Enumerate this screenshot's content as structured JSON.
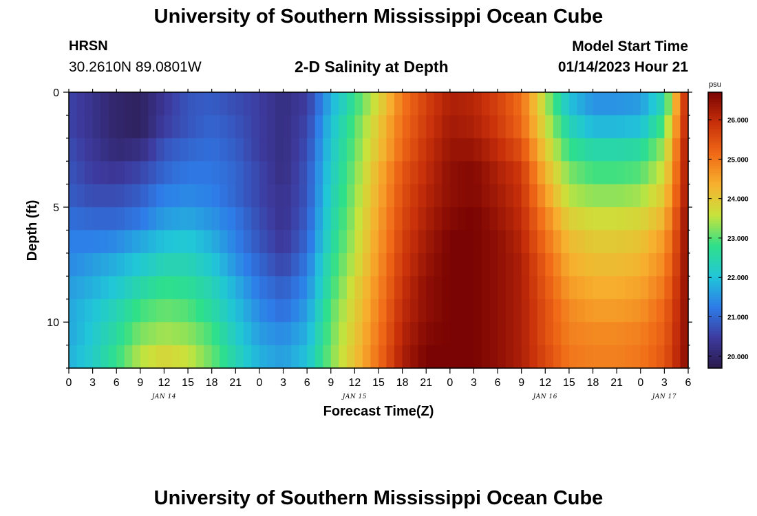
{
  "header": {
    "title": "University of Southern Mississippi Ocean Cube",
    "station": "HRSN",
    "coordinates": "30.2610N  89.0801W",
    "plot_title": "2-D Salinity at Depth",
    "model_start_label": "Model Start Time",
    "model_start_value": "01/14/2023 Hour 21"
  },
  "footer": {
    "title": "University of Southern Mississippi Ocean Cube"
  },
  "chart_data": {
    "type": "heatmap",
    "title": "2-D Salinity at Depth",
    "xlabel": "Forecast Time(Z)",
    "ylabel": "Depth (ft)",
    "x_tick_labels": [
      "0",
      "3",
      "6",
      "9",
      "12",
      "15",
      "18",
      "21",
      "0",
      "3",
      "6",
      "9",
      "12",
      "15",
      "18",
      "21",
      "0",
      "3",
      "6",
      "9",
      "12",
      "15",
      "18",
      "21",
      "0",
      "3",
      "6"
    ],
    "x_day_labels": [
      {
        "label": "JAN 14",
        "hour": 12
      },
      {
        "label": "JAN 15",
        "hour": 36
      },
      {
        "label": "JAN 16",
        "hour": 60
      },
      {
        "label": "JAN 17",
        "hour": 75
      }
    ],
    "xlim_hours": [
      0,
      78
    ],
    "y_tick_labels": [
      "0",
      "5",
      "10"
    ],
    "y_ticks": [
      0,
      5,
      10
    ],
    "ylim_ft": [
      0,
      12
    ],
    "y_reversed": true,
    "colorbar": {
      "unit": "psu",
      "range": [
        19.7,
        26.7
      ],
      "tick_labels": [
        "20.000",
        "21.000",
        "22.000",
        "23.000",
        "24.000",
        "25.000",
        "26.000"
      ],
      "tick_values": [
        20,
        21,
        22,
        23,
        24,
        25,
        26
      ],
      "colors": [
        "#2a1a4a",
        "#3d3a9e",
        "#2e7ce8",
        "#21c6d8",
        "#2fe08a",
        "#c8e33c",
        "#f7b02e",
        "#f06a17",
        "#c8300a",
        "#7a0403"
      ]
    },
    "depth_rows_ft": [
      0.5,
      1.5,
      2.5,
      3.5,
      4.5,
      5.5,
      6.5,
      7.5,
      8.5,
      9.5,
      10.5,
      11.5
    ],
    "time_knots_hours": [
      0,
      3,
      6,
      9,
      12,
      15,
      18,
      21,
      24,
      27,
      30,
      33,
      36,
      39,
      42,
      45,
      48,
      51,
      54,
      57,
      60,
      63,
      66,
      69,
      72,
      75,
      78
    ],
    "values_psu": [
      [
        20.6,
        20.3,
        20.0,
        19.9,
        20.4,
        20.8,
        20.9,
        20.7,
        20.5,
        20.2,
        20.5,
        21.8,
        22.8,
        23.8,
        25.0,
        25.7,
        26.2,
        26.1,
        25.7,
        25.1,
        23.5,
        22.0,
        21.5,
        21.5,
        21.6,
        22.5,
        26.4
      ],
      [
        20.6,
        20.3,
        20.0,
        19.9,
        20.5,
        20.8,
        21.0,
        20.8,
        20.5,
        20.2,
        20.6,
        22.0,
        23.0,
        24.0,
        25.1,
        25.8,
        26.3,
        26.2,
        25.8,
        25.2,
        23.7,
        22.4,
        21.9,
        21.9,
        22.0,
        23.0,
        26.4
      ],
      [
        20.7,
        20.4,
        20.1,
        20.2,
        20.8,
        21.0,
        21.1,
        20.9,
        20.5,
        20.2,
        20.7,
        22.1,
        23.1,
        24.1,
        25.2,
        25.9,
        26.4,
        26.4,
        26.0,
        25.5,
        24.0,
        22.8,
        22.5,
        22.5,
        22.6,
        23.4,
        26.5
      ],
      [
        20.8,
        20.5,
        20.4,
        20.6,
        21.0,
        21.2,
        21.2,
        21.0,
        20.6,
        20.2,
        20.8,
        22.2,
        23.2,
        24.3,
        25.4,
        26.0,
        26.5,
        26.6,
        26.2,
        25.8,
        24.3,
        23.2,
        22.9,
        22.9,
        23.0,
        23.7,
        26.5
      ],
      [
        20.9,
        20.7,
        20.7,
        20.9,
        21.3,
        21.4,
        21.3,
        21.0,
        20.6,
        20.3,
        20.8,
        22.3,
        23.3,
        24.4,
        25.5,
        26.1,
        26.5,
        26.6,
        26.3,
        25.9,
        24.6,
        23.5,
        23.3,
        23.3,
        23.4,
        24.0,
        26.5
      ],
      [
        21.1,
        21.0,
        21.0,
        21.2,
        21.6,
        21.7,
        21.5,
        21.2,
        20.7,
        20.3,
        20.9,
        22.4,
        23.4,
        24.5,
        25.6,
        26.2,
        26.6,
        26.7,
        26.4,
        26.0,
        24.9,
        23.9,
        23.7,
        23.7,
        23.8,
        24.3,
        26.6
      ],
      [
        21.3,
        21.3,
        21.4,
        21.7,
        22.0,
        22.1,
        21.8,
        21.3,
        20.8,
        20.4,
        21.0,
        22.5,
        23.5,
        24.6,
        25.7,
        26.3,
        26.7,
        26.7,
        26.5,
        26.1,
        25.1,
        24.2,
        24.0,
        24.0,
        24.1,
        24.6,
        26.6
      ],
      [
        21.4,
        21.6,
        21.8,
        22.1,
        22.4,
        22.4,
        22.1,
        21.5,
        21.0,
        20.6,
        21.2,
        22.7,
        23.6,
        24.7,
        25.8,
        26.4,
        26.7,
        26.7,
        26.5,
        26.2,
        25.3,
        24.4,
        24.2,
        24.2,
        24.3,
        24.8,
        26.6
      ],
      [
        21.6,
        21.8,
        22.1,
        22.5,
        22.8,
        22.7,
        22.4,
        21.8,
        21.2,
        20.9,
        21.4,
        22.8,
        23.8,
        24.8,
        25.9,
        26.5,
        26.7,
        26.7,
        26.5,
        26.2,
        25.4,
        24.6,
        24.4,
        24.4,
        24.5,
        25.0,
        26.6
      ],
      [
        21.7,
        22.0,
        22.4,
        22.9,
        23.1,
        23.0,
        22.6,
        22.0,
        21.4,
        21.1,
        21.6,
        23.0,
        23.9,
        24.9,
        26.0,
        26.5,
        26.7,
        26.7,
        26.5,
        26.2,
        25.5,
        24.8,
        24.6,
        24.6,
        24.7,
        25.2,
        26.6
      ],
      [
        21.7,
        22.1,
        22.6,
        23.2,
        23.4,
        23.3,
        22.9,
        22.2,
        21.6,
        21.4,
        21.8,
        23.1,
        24.0,
        25.0,
        26.1,
        26.6,
        26.7,
        26.7,
        26.5,
        26.2,
        25.5,
        24.9,
        24.8,
        24.8,
        24.9,
        25.3,
        26.6
      ],
      [
        21.8,
        22.2,
        22.8,
        23.5,
        23.8,
        23.6,
        23.1,
        22.4,
        21.8,
        21.6,
        22.0,
        23.2,
        24.1,
        25.1,
        26.2,
        26.7,
        26.7,
        26.7,
        26.5,
        26.2,
        25.6,
        25.0,
        24.9,
        24.9,
        25.0,
        25.4,
        26.6
      ]
    ]
  }
}
